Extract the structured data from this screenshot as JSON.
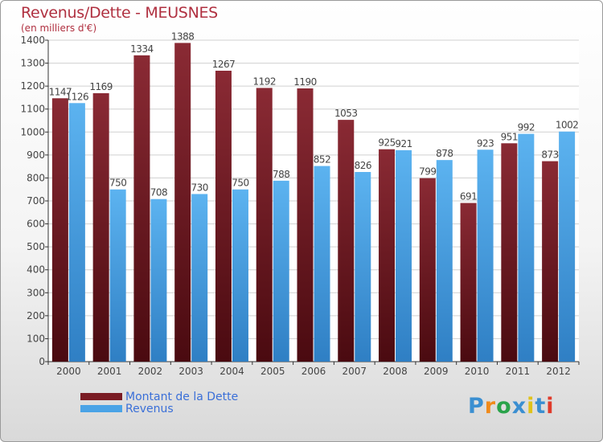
{
  "header": {
    "title": "Revenus/Dette - MEUSNES",
    "subtitle": "(en milliers d'€)"
  },
  "legend": {
    "dette": "Montant de la Dette",
    "revenus": "Revenus"
  },
  "logo": "Proxiti",
  "colors": {
    "dette": "#7a1c24",
    "revenus": "#4aa3e6",
    "grid": "#d0d0d0",
    "axis": "#333333",
    "label": "#444444"
  },
  "chart_data": {
    "type": "bar",
    "categories": [
      "2000",
      "2001",
      "2002",
      "2003",
      "2004",
      "2005",
      "2006",
      "2007",
      "2008",
      "2009",
      "2010",
      "2011",
      "2012"
    ],
    "series": [
      {
        "name": "Montant de la Dette",
        "values": [
          1147,
          1169,
          1334,
          1388,
          1267,
          1192,
          1190,
          1053,
          925,
          799,
          691,
          951,
          873
        ]
      },
      {
        "name": "Revenus",
        "values": [
          1126,
          750,
          708,
          730,
          750,
          788,
          852,
          826,
          921,
          878,
          923,
          992,
          1002
        ]
      }
    ],
    "ylim": [
      0,
      1400
    ],
    "yticks": [
      0,
      100,
      200,
      300,
      400,
      500,
      600,
      700,
      800,
      900,
      1000,
      1100,
      1200,
      1300,
      1400
    ],
    "grid": true,
    "legend_position": "bottom-left"
  }
}
